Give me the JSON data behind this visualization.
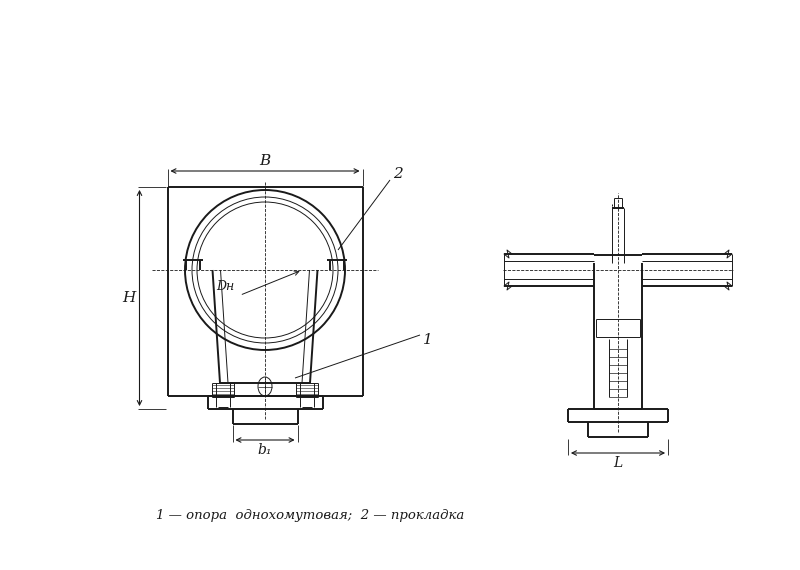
{
  "bg_color": "#ffffff",
  "line_color": "#1a1a1a",
  "caption": "1 — опора  однохомутовая;  2 — прокладка",
  "label_B": "B",
  "label_H": "H",
  "label_b1": "b₁",
  "label_L": "L",
  "label_Dn": "Dн",
  "label_2": "2",
  "label_1": "1"
}
